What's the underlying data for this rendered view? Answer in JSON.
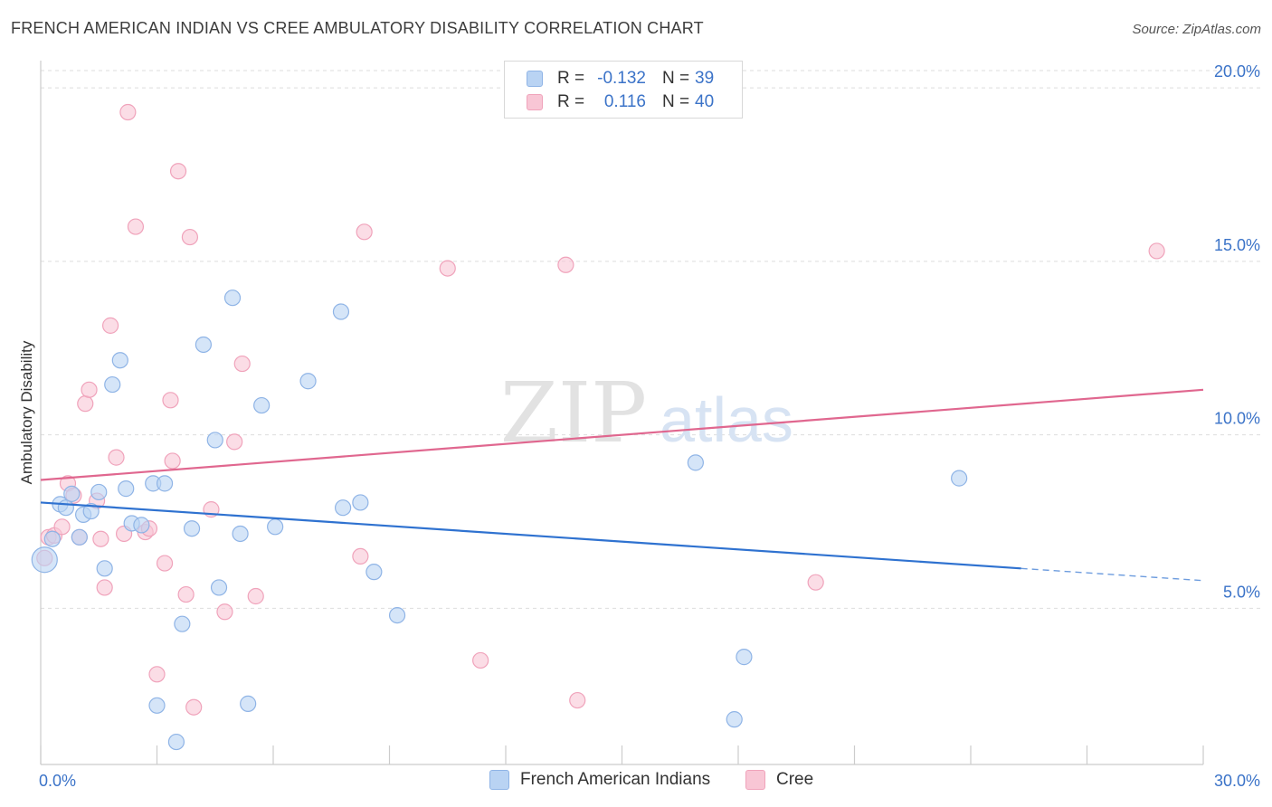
{
  "header": {
    "title": "FRENCH AMERICAN INDIAN VS CREE AMBULATORY DISABILITY CORRELATION CHART",
    "source": "Source: ZipAtlas.com"
  },
  "colors": {
    "blue_fill": "#b9d3f3",
    "blue_stroke": "#8fb4e6",
    "blue_line": "#2f72d0",
    "pink_fill": "#f8c6d5",
    "pink_stroke": "#f0a3bb",
    "pink_line": "#e0678f",
    "tick_text": "#3b73c8",
    "grid": "#dddddd"
  },
  "legend": {
    "rows": [
      {
        "r_label": "R =",
        "r_value": "-0.132",
        "n_label": "N =",
        "n_value": "39",
        "color": "blue"
      },
      {
        "r_label": "R =",
        "r_value": "0.116",
        "n_label": "N =",
        "n_value": "40",
        "color": "pink"
      }
    ]
  },
  "bottom_legend": {
    "items": [
      {
        "label": "French American Indians",
        "color": "blue"
      },
      {
        "label": "Cree",
        "color": "pink"
      }
    ]
  },
  "watermark": {
    "zip": "ZIP",
    "atlas": "atlas"
  },
  "chart_data": {
    "type": "scatter",
    "title": "FRENCH AMERICAN INDIAN VS CREE AMBULATORY DISABILITY CORRELATION CHART",
    "xlabel": "",
    "ylabel": "Ambulatory Disability",
    "xlim": [
      0,
      30
    ],
    "ylim": [
      0.5,
      20.5
    ],
    "x_tick_labels": [
      {
        "value": 0,
        "label": "0.0%"
      },
      {
        "value": 30,
        "label": "30.0%"
      }
    ],
    "y_tick_labels": [
      {
        "value": 5,
        "label": "5.0%"
      },
      {
        "value": 10,
        "label": "10.0%"
      },
      {
        "value": 15,
        "label": "15.0%"
      },
      {
        "value": 20,
        "label": "20.0%"
      }
    ],
    "grid": true,
    "series": [
      {
        "name": "French American Indians",
        "color": "blue",
        "r": -0.132,
        "n": 39,
        "trend": {
          "x0": 0,
          "y0": 8.05,
          "x1": 25.3,
          "y1": 6.15,
          "dash_to_x": 30,
          "dash_to_y": 5.8
        },
        "points": [
          [
            0.1,
            6.4
          ],
          [
            0.3,
            7.0
          ],
          [
            0.5,
            8.0
          ],
          [
            0.65,
            7.9
          ],
          [
            0.8,
            8.3
          ],
          [
            1.0,
            7.05
          ],
          [
            1.1,
            7.7
          ],
          [
            1.3,
            7.8
          ],
          [
            1.5,
            8.35
          ],
          [
            1.65,
            6.15
          ],
          [
            1.85,
            11.45
          ],
          [
            2.05,
            12.15
          ],
          [
            2.2,
            8.45
          ],
          [
            2.35,
            7.45
          ],
          [
            2.6,
            7.4
          ],
          [
            2.9,
            8.6
          ],
          [
            3.0,
            2.2
          ],
          [
            3.2,
            8.6
          ],
          [
            3.5,
            1.15
          ],
          [
            3.65,
            4.55
          ],
          [
            3.9,
            7.3
          ],
          [
            4.2,
            12.6
          ],
          [
            4.5,
            9.85
          ],
          [
            4.6,
            5.6
          ],
          [
            4.95,
            13.95
          ],
          [
            5.15,
            7.15
          ],
          [
            5.35,
            2.25
          ],
          [
            5.7,
            10.85
          ],
          [
            6.05,
            7.35
          ],
          [
            6.9,
            11.55
          ],
          [
            7.8,
            7.9
          ],
          [
            7.75,
            13.55
          ],
          [
            8.25,
            8.05
          ],
          [
            8.6,
            6.05
          ],
          [
            9.2,
            4.8
          ],
          [
            16.9,
            9.2
          ],
          [
            17.9,
            1.8
          ],
          [
            18.15,
            3.6
          ],
          [
            23.7,
            8.75
          ]
        ]
      },
      {
        "name": "Cree",
        "color": "pink",
        "r": 0.116,
        "n": 40,
        "trend": {
          "x0": 0,
          "y0": 8.7,
          "x1": 30,
          "y1": 11.3
        },
        "points": [
          [
            0.1,
            6.45
          ],
          [
            0.2,
            7.05
          ],
          [
            0.35,
            7.1
          ],
          [
            0.55,
            7.35
          ],
          [
            0.7,
            8.6
          ],
          [
            0.85,
            8.25
          ],
          [
            1.0,
            7.05
          ],
          [
            1.15,
            10.9
          ],
          [
            1.25,
            11.3
          ],
          [
            1.45,
            8.1
          ],
          [
            1.55,
            7.0
          ],
          [
            1.65,
            5.6
          ],
          [
            1.8,
            13.15
          ],
          [
            1.95,
            9.35
          ],
          [
            2.15,
            7.15
          ],
          [
            2.25,
            19.3
          ],
          [
            2.45,
            16.0
          ],
          [
            2.7,
            7.2
          ],
          [
            2.8,
            7.3
          ],
          [
            3.0,
            3.1
          ],
          [
            3.2,
            6.3
          ],
          [
            3.35,
            11.0
          ],
          [
            3.4,
            9.25
          ],
          [
            3.55,
            17.6
          ],
          [
            3.75,
            5.4
          ],
          [
            3.85,
            15.7
          ],
          [
            3.95,
            2.15
          ],
          [
            4.4,
            7.85
          ],
          [
            4.75,
            4.9
          ],
          [
            5.0,
            9.8
          ],
          [
            5.2,
            12.05
          ],
          [
            5.55,
            5.35
          ],
          [
            8.25,
            6.5
          ],
          [
            8.35,
            15.85
          ],
          [
            10.5,
            14.8
          ],
          [
            11.35,
            3.5
          ],
          [
            13.55,
            14.9
          ],
          [
            13.85,
            2.35
          ],
          [
            20.0,
            5.75
          ],
          [
            28.8,
            15.3
          ]
        ]
      }
    ]
  }
}
